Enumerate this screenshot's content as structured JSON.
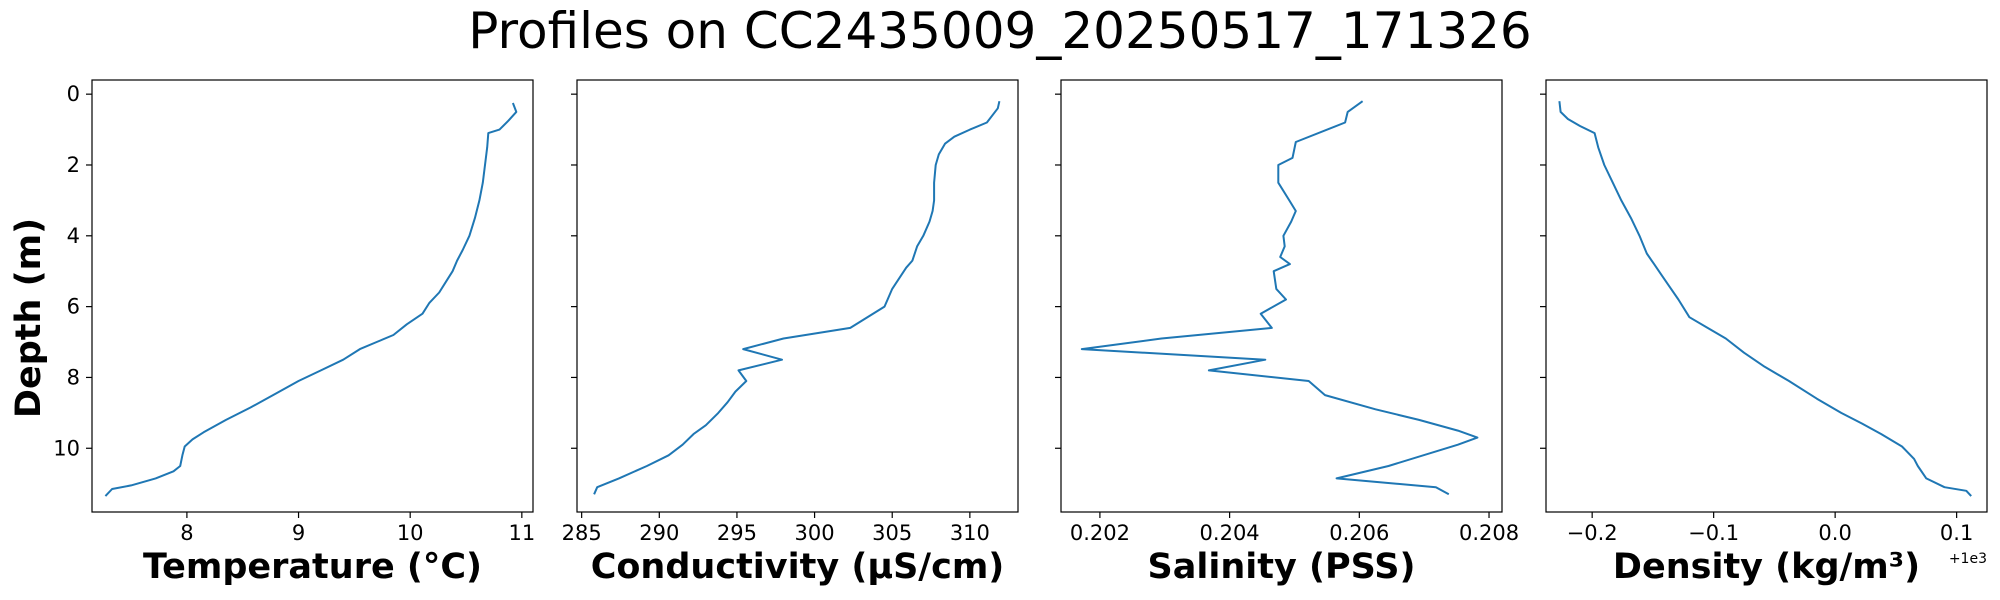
{
  "figure": {
    "title": "Profiles on CC2435009_20250517_171326",
    "ylabel": "Depth (m)",
    "offset_label": "+1e3"
  },
  "chart_data": [
    {
      "type": "line",
      "xlabel": "Temperature (°C)",
      "ylabel": "Depth (m)",
      "xlim": [
        7.15,
        11.1
      ],
      "ylim": [
        11.8,
        -0.4
      ],
      "y_inverted": true,
      "xticks": [
        "8",
        "9",
        "10",
        "11"
      ],
      "xtick_values": [
        8,
        9,
        10,
        11
      ],
      "yticks": [
        "0",
        "2",
        "4",
        "6",
        "8",
        "10"
      ],
      "ytick_values": [
        0,
        2,
        4,
        6,
        8,
        10
      ],
      "grid": false,
      "color": "#1f77b4",
      "x": [
        10.92,
        10.95,
        10.88,
        10.8,
        10.7,
        10.69,
        10.67,
        10.65,
        10.62,
        10.58,
        10.53,
        10.47,
        10.42,
        10.38,
        10.32,
        10.26,
        10.17,
        10.11,
        9.97,
        9.85,
        9.7,
        9.55,
        9.4,
        9.2,
        9.0,
        8.8,
        8.57,
        8.35,
        8.15,
        8.05,
        7.98,
        7.96,
        7.94,
        7.88,
        7.72,
        7.5,
        7.33,
        7.27
      ],
      "y": [
        0.25,
        0.5,
        0.75,
        1.0,
        1.1,
        1.5,
        2.0,
        2.5,
        3.0,
        3.5,
        4.0,
        4.4,
        4.7,
        5.0,
        5.3,
        5.6,
        5.9,
        6.2,
        6.5,
        6.8,
        7.0,
        7.2,
        7.5,
        7.8,
        8.1,
        8.45,
        8.85,
        9.2,
        9.55,
        9.75,
        9.95,
        10.2,
        10.5,
        10.65,
        10.85,
        11.05,
        11.15,
        11.35
      ]
    },
    {
      "type": "line",
      "xlabel": "Conductivity (μS/cm)",
      "xlim": [
        284.7,
        313.1
      ],
      "ylim": [
        11.8,
        -0.4
      ],
      "y_inverted": true,
      "xticks": [
        "285",
        "290",
        "295",
        "300",
        "305",
        "310"
      ],
      "xtick_values": [
        285,
        290,
        295,
        300,
        305,
        310
      ],
      "yticks": [
        "0",
        "2",
        "4",
        "6",
        "8",
        "10"
      ],
      "ytick_values": [
        0,
        2,
        4,
        6,
        8,
        10
      ],
      "grid": false,
      "color": "#1f77b4",
      "x": [
        311.9,
        311.8,
        311.1,
        310.0,
        309.0,
        308.4,
        308.0,
        307.8,
        307.7,
        307.7,
        307.6,
        307.4,
        307.0,
        306.6,
        306.3,
        305.9,
        305.6,
        305.0,
        304.5,
        302.3,
        298.0,
        295.4,
        297.9,
        295.1,
        295.6,
        294.9,
        294.4,
        293.8,
        293.0,
        292.2,
        291.5,
        290.6,
        289.2,
        287.4,
        286.0,
        285.8
      ],
      "y": [
        0.2,
        0.4,
        0.8,
        1.0,
        1.2,
        1.4,
        1.7,
        2.0,
        2.5,
        3.0,
        3.3,
        3.6,
        4.0,
        4.3,
        4.7,
        4.9,
        5.1,
        5.5,
        6.0,
        6.6,
        6.9,
        7.2,
        7.5,
        7.8,
        8.1,
        8.4,
        8.7,
        9.0,
        9.35,
        9.6,
        9.9,
        10.2,
        10.5,
        10.85,
        11.1,
        11.3
      ]
    },
    {
      "type": "line",
      "xlabel": "Salinity (PSS)",
      "xlim": [
        0.2014,
        0.2082
      ],
      "ylim": [
        11.8,
        -0.4
      ],
      "y_inverted": true,
      "xticks": [
        "0.202",
        "0.204",
        "0.206",
        "0.208"
      ],
      "xtick_values": [
        0.202,
        0.204,
        0.206,
        0.208
      ],
      "yticks": [
        "0",
        "2",
        "4",
        "6",
        "8",
        "10"
      ],
      "ytick_values": [
        0,
        2,
        4,
        6,
        8,
        10
      ],
      "grid": false,
      "color": "#1f77b4",
      "x": [
        0.20605,
        0.20582,
        0.20578,
        0.20502,
        0.20497,
        0.20475,
        0.20475,
        0.20492,
        0.20502,
        0.20495,
        0.20483,
        0.20485,
        0.20478,
        0.20493,
        0.20468,
        0.20472,
        0.20487,
        0.20448,
        0.20465,
        0.20295,
        0.20172,
        0.20455,
        0.20368,
        0.20522,
        0.20547,
        0.20625,
        0.20692,
        0.20752,
        0.20782,
        0.20752,
        0.20645,
        0.20565,
        0.20718,
        0.20738
      ],
      "y": [
        0.2,
        0.5,
        0.8,
        1.35,
        1.8,
        2.0,
        2.5,
        3.0,
        3.3,
        3.6,
        4.0,
        4.3,
        4.6,
        4.8,
        5.0,
        5.5,
        5.8,
        6.2,
        6.6,
        6.9,
        7.2,
        7.5,
        7.8,
        8.1,
        8.5,
        8.9,
        9.2,
        9.5,
        9.7,
        9.9,
        10.5,
        10.85,
        11.1,
        11.3
      ]
    },
    {
      "type": "line",
      "xlabel": "Density (kg/m³)",
      "x_offset_label": "+1e3",
      "xlim": [
        -0.238,
        0.125
      ],
      "ylim": [
        11.8,
        -0.4
      ],
      "y_inverted": true,
      "xticks": [
        "−0.2",
        "−0.1",
        "0.0",
        "0.1"
      ],
      "xtick_values": [
        -0.2,
        -0.1,
        0.0,
        0.1
      ],
      "yticks": [
        "0",
        "2",
        "4",
        "6",
        "8",
        "10"
      ],
      "ytick_values": [
        0,
        2,
        4,
        6,
        8,
        10
      ],
      "grid": false,
      "color": "#1f77b4",
      "x": [
        -0.227,
        -0.226,
        -0.22,
        -0.21,
        -0.198,
        -0.195,
        -0.19,
        -0.183,
        -0.176,
        -0.168,
        -0.161,
        -0.155,
        -0.149,
        -0.143,
        -0.137,
        -0.129,
        -0.12,
        -0.105,
        -0.09,
        -0.075,
        -0.058,
        -0.038,
        -0.015,
        0.005,
        0.022,
        0.038,
        0.055,
        0.065,
        0.068,
        0.07,
        0.075,
        0.09,
        0.108,
        0.112
      ],
      "y": [
        0.2,
        0.5,
        0.7,
        0.9,
        1.1,
        1.5,
        2.0,
        2.5,
        3.0,
        3.5,
        4.0,
        4.5,
        4.8,
        5.1,
        5.4,
        5.8,
        6.3,
        6.6,
        6.9,
        7.3,
        7.7,
        8.1,
        8.6,
        9.0,
        9.3,
        9.6,
        9.95,
        10.3,
        10.5,
        10.6,
        10.85,
        11.1,
        11.2,
        11.35
      ]
    }
  ]
}
